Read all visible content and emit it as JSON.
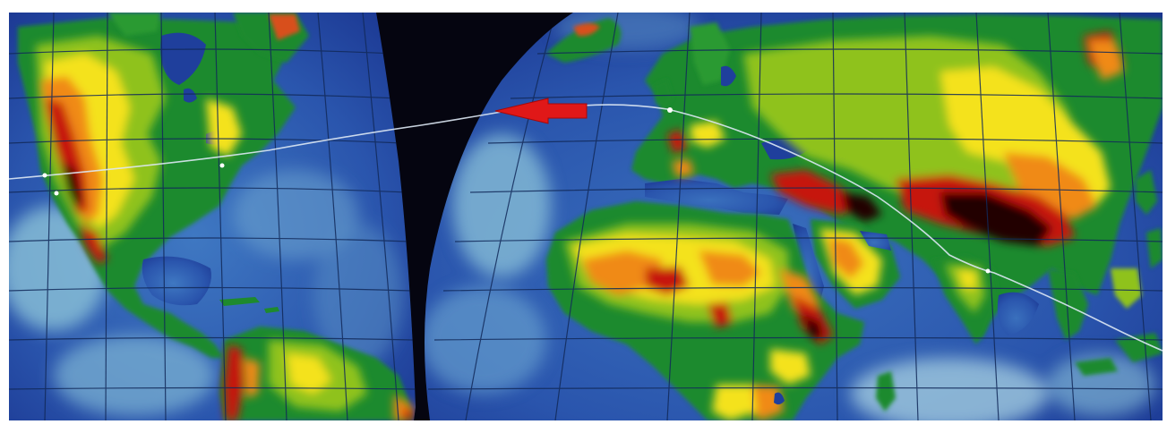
{
  "map": {
    "projection": "interrupted",
    "lobes": [
      "americas-lobe",
      "eurasia-africa-lobe"
    ],
    "colors": {
      "space_black": "#050510",
      "ocean_deep": "#1f3f9c",
      "ocean_mid": "#3f78c2",
      "ocean_light": "#8cc3d8",
      "land_low": "#1e8a2e",
      "land_mid": "#8fc21c",
      "land_high": "#f4e21e",
      "land_higher": "#f08a12",
      "land_peak": "#c6140c",
      "land_extreme": "#240404",
      "arrow": "#e01818",
      "track": "#dde8f4",
      "graticule": "#122a5a"
    },
    "arrow": {
      "direction": "west"
    },
    "track": {
      "style": "thin-light-line-with-waypoint-dots"
    }
  }
}
